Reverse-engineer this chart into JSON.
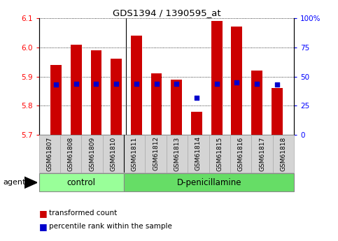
{
  "title": "GDS1394 / 1390595_at",
  "samples": [
    "GSM61807",
    "GSM61808",
    "GSM61809",
    "GSM61810",
    "GSM61811",
    "GSM61812",
    "GSM61813",
    "GSM61814",
    "GSM61815",
    "GSM61816",
    "GSM61817",
    "GSM61818"
  ],
  "transformed_count": [
    5.94,
    6.01,
    5.99,
    5.96,
    6.04,
    5.91,
    5.89,
    5.78,
    6.09,
    6.07,
    5.92,
    5.86
  ],
  "percentile_rank": [
    43,
    44,
    44,
    44,
    44,
    44,
    44,
    32,
    44,
    45,
    44,
    43
  ],
  "ylim_left": [
    5.7,
    6.1
  ],
  "ylim_right": [
    0,
    100
  ],
  "yticks_left": [
    5.7,
    5.8,
    5.9,
    6.0,
    6.1
  ],
  "yticks_right": [
    0,
    25,
    50,
    75,
    100
  ],
  "bar_color": "#cc0000",
  "dot_color": "#0000cc",
  "control_color": "#99ff99",
  "treatment_color": "#66dd66",
  "control_samples": 4,
  "treatment_label": "D-penicillamine",
  "control_label": "control",
  "agent_label": "agent",
  "legend_red": "transformed count",
  "legend_blue": "percentile rank within the sample",
  "bar_width": 0.55,
  "base_value": 5.7
}
